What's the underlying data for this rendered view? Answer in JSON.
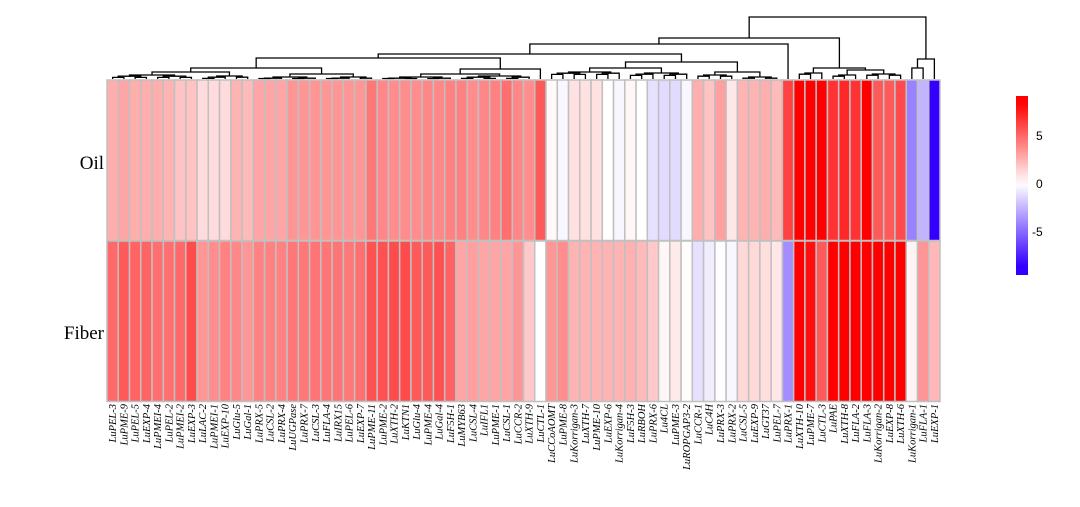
{
  "chart_data": {
    "type": "heatmap",
    "title": "",
    "rows": [
      "Oil",
      "Fiber"
    ],
    "columns": [
      "LuPEL-3",
      "LuPME-9",
      "LuPEL-5",
      "LuEXP-4",
      "LuPMEI-4",
      "LuPEL-2",
      "LuPMEI-2",
      "LuEXP-3",
      "LuLAC-2",
      "LuPMEI-1",
      "LuEXP-10",
      "LuGlu-5",
      "LuGal-1",
      "LuPRX-5",
      "LuCSL-2",
      "LuPRX-4",
      "LuUGPase",
      "LuPRX-7",
      "LuCSL-3",
      "LuFLA-4",
      "LuIRX15",
      "LuPEL-6",
      "LuEXP-7",
      "LuPME-11",
      "LuPME-2",
      "LuXTH-2",
      "LuKTN1",
      "LuGlu-4",
      "LuPME-4",
      "LuGal-4",
      "LuF5H-1",
      "LuMYB63",
      "LuCSL-4",
      "LuIFL1",
      "LuPME-1",
      "LuCSL-1",
      "LuCCR-2",
      "LuXTH-9",
      "LuCTL-1",
      "LuCCoAOMT",
      "LuPME-8",
      "LuKorrigan-3",
      "LuXTH-7",
      "LuPME-10",
      "LuEXP-6",
      "LuKorrigan-4",
      "LuF5H-3",
      "LuRBOH",
      "LuPRX-6",
      "Lu4CL",
      "LuPME-3",
      "LuROPGAP3-2",
      "LuCCR-1",
      "LuC4H",
      "LuPRX-3",
      "LuPRX-2",
      "LuCSL-5",
      "LuEXP-9",
      "LuGT37",
      "LuPEL-7",
      "LuPRX-1",
      "LuXTH-10",
      "LuPME-7",
      "LuCTL-3",
      "LuPAE",
      "LuXTH-8",
      "LuFLA-2",
      "LuFLA-3",
      "LuKorrigan-2",
      "LuEXP-8",
      "LuXTH-6",
      "LuKorrigan-1",
      "LuFLA-1",
      "LuEXP-1"
    ],
    "values": [
      [
        2.7,
        3.0,
        2.7,
        2.7,
        2.7,
        2.5,
        2.0,
        2.0,
        1.2,
        1.2,
        1.2,
        2.5,
        2.3,
        3.0,
        3.0,
        3.0,
        3.5,
        3.5,
        3.5,
        3.5,
        3.5,
        3.5,
        3.5,
        4.5,
        4.0,
        3.8,
        3.8,
        3.8,
        4.0,
        4.0,
        4.2,
        4.2,
        3.8,
        4.0,
        4.2,
        4.8,
        4.0,
        3.8,
        5.5,
        0.2,
        -0.3,
        1.0,
        1.0,
        1.0,
        0.0,
        -0.3,
        0.3,
        0.0,
        -1.0,
        -1.2,
        -1.2,
        -0.3,
        2.7,
        2.0,
        3.2,
        0.8,
        2.5,
        2.5,
        2.7,
        2.3,
        6.3,
        8.5,
        8.5,
        8.5,
        6.8,
        7.2,
        6.8,
        8.5,
        5.5,
        5.5,
        6.0,
        -4.2,
        -2.5,
        -8.5
      ],
      [
        5.0,
        5.5,
        5.2,
        5.2,
        4.8,
        4.8,
        5.0,
        6.0,
        3.5,
        3.8,
        4.2,
        4.0,
        3.5,
        4.2,
        4.2,
        4.2,
        4.5,
        4.5,
        4.6,
        4.6,
        4.6,
        4.5,
        4.8,
        5.8,
        5.8,
        6.0,
        6.0,
        5.5,
        5.5,
        5.8,
        5.2,
        3.0,
        3.2,
        3.0,
        3.0,
        3.0,
        3.5,
        1.8,
        0.0,
        3.5,
        3.8,
        2.5,
        2.5,
        2.5,
        2.5,
        2.5,
        2.6,
        2.3,
        1.8,
        0.3,
        0.7,
        0.1,
        -1.0,
        -0.6,
        -0.1,
        -0.3,
        1.3,
        1.3,
        1.1,
        0.8,
        -3.8,
        8.5,
        8.0,
        5.5,
        8.5,
        8.5,
        8.5,
        8.5,
        8.5,
        8.5,
        8.5,
        0.4,
        3.5,
        2.4
      ]
    ],
    "color_scale": {
      "low": "#3300FF",
      "mid": "#FFFFFF",
      "high": "#FF0000",
      "range": [
        -9.5,
        9.2
      ],
      "ticks": [
        "5",
        "0",
        "-5"
      ],
      "tick_values": [
        5,
        0,
        -5
      ]
    },
    "cell_border_color": "#C0C0C0",
    "dendrogram": "columns",
    "legend_placement": "right"
  }
}
